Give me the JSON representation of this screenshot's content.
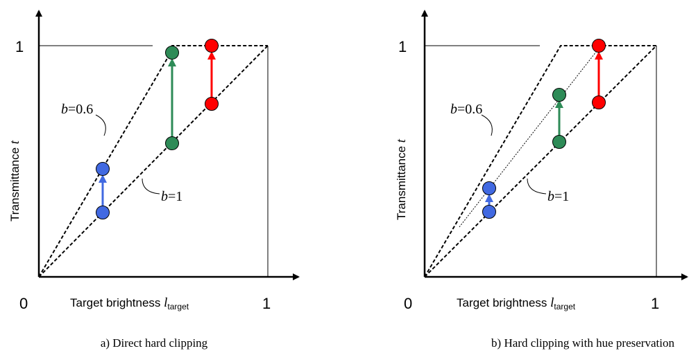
{
  "colors": {
    "blue": "#4169e1",
    "green": "#2e8b57",
    "red": "#ff0000",
    "axis": "#000000"
  },
  "panels": [
    {
      "id": "a",
      "caption": "a) Direct hard clipping",
      "tick_zero": "0",
      "tick_one_x": "1",
      "tick_one_y": "1",
      "ylabel_main": "Transmittance ",
      "ylabel_var": "t",
      "xlabel_main": "Target brightness ",
      "xlabel_var": "l",
      "xlabel_sub": "target",
      "b_upper_var": "b",
      "b_upper_val": "=0.6",
      "b_lower_var": "b",
      "b_lower_val": "=1",
      "icons": [
        "blue-arrow-icon",
        "green-arrow-icon",
        "red-arrow-icon"
      ]
    },
    {
      "id": "b",
      "caption": "b) Hard clipping with hue preservation",
      "tick_zero": "0",
      "tick_one_x": "1",
      "tick_one_y": "1",
      "ylabel_main": "Transmittance ",
      "ylabel_var": "t",
      "xlabel_main": "Target brightness ",
      "xlabel_var": "l",
      "xlabel_sub": "target",
      "b_upper_var": "b",
      "b_upper_val": "=0.6",
      "b_lower_var": "b",
      "b_lower_val": "=1",
      "icons": [
        "blue-arrow-icon",
        "green-arrow-icon",
        "red-arrow-icon"
      ]
    }
  ]
}
